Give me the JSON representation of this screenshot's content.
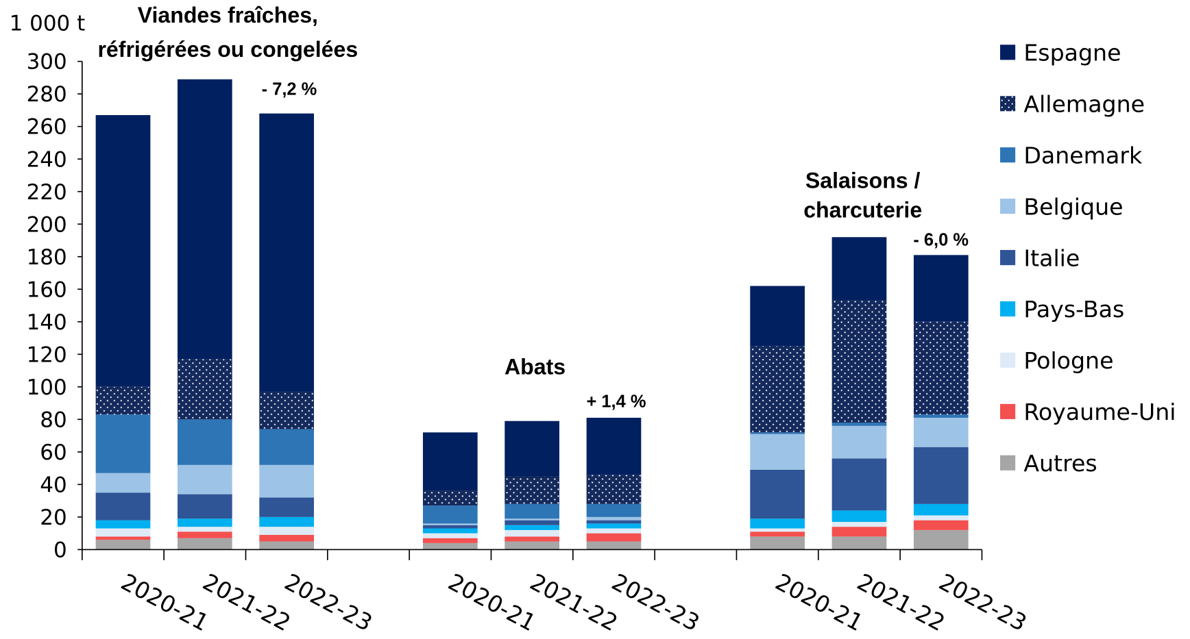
{
  "chart_data": {
    "type": "stacked_bar",
    "y_label": "1 000 t",
    "categories": [
      "2020-21",
      "2021-22",
      "2022-23",
      null,
      "2020-21",
      "2021-22",
      "2022-23",
      null,
      "2020-21",
      "2021-22",
      "2022-23"
    ],
    "group_labels": [
      [
        "Viandes fraîches,",
        "réfrigérées ou congelées"
      ],
      [
        "Abats"
      ],
      [
        "Salaisons /",
        "charcuterie"
      ]
    ],
    "change_labels": [
      "- 7,2 %",
      "+ 1,4 %",
      "- 6,0 %"
    ],
    "ylim": [
      0,
      300
    ],
    "yticks": [
      0,
      20,
      40,
      60,
      80,
      100,
      120,
      140,
      160,
      180,
      200,
      220,
      240,
      260,
      280,
      300
    ],
    "grid": false,
    "legend": "right",
    "series": [
      {
        "name": "Espagne",
        "color": "#002060",
        "values": [
          167,
          172,
          171,
          null,
          36,
          34,
          35,
          null,
          37,
          39,
          41
        ]
      },
      {
        "name": "Allemagne",
        "color": "#14295c",
        "hatch": "dots",
        "values": [
          17,
          37,
          23,
          null,
          9,
          17,
          18,
          null,
          53,
          75,
          57
        ]
      },
      {
        "name": "Danemark",
        "color": "#2e75b6",
        "values": [
          36,
          28,
          22,
          null,
          11,
          9,
          8,
          null,
          1,
          2,
          2
        ]
      },
      {
        "name": "Belgique",
        "color": "#9dc3e6",
        "values": [
          12,
          18,
          20,
          null,
          1,
          1,
          2,
          null,
          22,
          20,
          18
        ]
      },
      {
        "name": "Italie",
        "color": "#2f5597",
        "values": [
          17,
          15,
          12,
          null,
          2,
          3,
          2,
          null,
          30,
          32,
          35
        ]
      },
      {
        "name": "Pays-Bas",
        "color": "#00b0f0",
        "values": [
          5,
          5,
          6,
          null,
          3,
          3,
          3,
          null,
          6,
          7,
          7
        ]
      },
      {
        "name": "Pologne",
        "color": "#deebf7",
        "values": [
          5,
          3,
          5,
          null,
          3,
          4,
          3,
          null,
          2,
          3,
          3
        ]
      },
      {
        "name": "Royaume-Uni",
        "color": "#f4504f",
        "values": [
          2,
          4,
          4,
          null,
          3,
          3,
          5,
          null,
          3,
          6,
          6
        ]
      },
      {
        "name": "Autres",
        "color": "#a6a6a6",
        "values": [
          6,
          7,
          5,
          null,
          4,
          5,
          5,
          null,
          8,
          8,
          12
        ]
      }
    ]
  }
}
